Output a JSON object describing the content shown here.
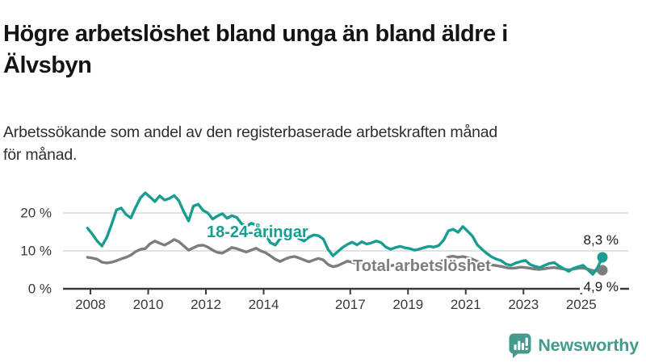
{
  "header": {
    "title": "Högre arbetslöshet bland unga än bland äldre i\nÄlvsbyn",
    "subtitle": "Arbetssökande som andel av den registerbaserade arbetskraften månad\nför månad."
  },
  "chart_data": {
    "type": "line",
    "unit": "%",
    "grid": true,
    "x_start_year": 2007.9,
    "x_step_years": 0.166667,
    "x_tick_years": [
      2008,
      2010,
      2012,
      2014,
      2017,
      2019,
      2021,
      2023,
      2025
    ],
    "x_tick_labels": [
      "2008",
      "2010",
      "2012",
      "2014",
      "2017",
      "2019",
      "2021",
      "2023",
      "2025"
    ],
    "y_ticks": [
      0,
      10,
      20
    ],
    "y_tick_labels": [
      "0 %",
      "10 %",
      "20 %"
    ],
    "ylim": [
      0,
      27
    ],
    "colors": {
      "youth_line": "#179e91",
      "total_line": "#7d7d7d",
      "axis": "#3a3a3a",
      "gridline": "#d9d9d9"
    },
    "series": [
      {
        "name": "Total arbetslöshet",
        "color": "#7d7d7d",
        "end_label": "4,9 %",
        "end_value": 4.9,
        "values": [
          8.3,
          8.1,
          7.8,
          7.0,
          6.8,
          7.0,
          7.4,
          7.9,
          8.3,
          8.9,
          9.8,
          10.4,
          10.6,
          11.9,
          12.6,
          12.0,
          11.5,
          12.2,
          13.0,
          12.4,
          11.3,
          10.2,
          10.8,
          11.4,
          11.5,
          11.0,
          10.2,
          9.6,
          9.4,
          10.1,
          10.9,
          10.6,
          10.1,
          9.7,
          10.2,
          10.7,
          10.0,
          9.5,
          8.7,
          7.8,
          7.2,
          7.8,
          8.3,
          8.5,
          8.1,
          7.6,
          7.1,
          7.6,
          8.0,
          7.6,
          6.4,
          5.8,
          6.1,
          6.7,
          7.3,
          7.0,
          6.6,
          6.3,
          6.5,
          6.8,
          7.0,
          6.8,
          6.4,
          6.1,
          6.3,
          6.5,
          6.4,
          6.3,
          6.1,
          6.2,
          6.4,
          6.6,
          6.7,
          6.9,
          7.6,
          8.4,
          8.6,
          8.3,
          8.5,
          8.2,
          7.8,
          7.2,
          6.9,
          6.6,
          6.3,
          6.1,
          5.9,
          5.6,
          5.4,
          5.5,
          5.7,
          5.6,
          5.4,
          5.2,
          5.1,
          5.3,
          5.5,
          5.6,
          5.4,
          5.2,
          5.0,
          5.2,
          5.4,
          5.5,
          5.2,
          4.8,
          4.7,
          4.9
        ]
      },
      {
        "name": "18-24-åringar",
        "color": "#179e91",
        "end_label": "8,3 %",
        "end_value": 8.3,
        "values": [
          16.0,
          14.4,
          12.6,
          11.3,
          13.6,
          17.0,
          20.8,
          21.3,
          19.6,
          18.7,
          21.5,
          24.0,
          25.3,
          24.2,
          23.0,
          24.5,
          23.4,
          23.8,
          24.6,
          23.2,
          20.3,
          17.9,
          21.8,
          22.3,
          20.7,
          20.0,
          18.4,
          19.2,
          19.8,
          18.6,
          19.3,
          18.8,
          17.2,
          16.4,
          17.3,
          16.8,
          15.4,
          14.3,
          12.2,
          11.5,
          13.2,
          14.1,
          14.4,
          14.0,
          13.2,
          12.6,
          13.6,
          14.2,
          14.0,
          13.1,
          10.4,
          8.7,
          9.8,
          10.9,
          11.7,
          12.3,
          11.6,
          12.4,
          11.8,
          12.1,
          12.6,
          12.2,
          11.0,
          10.4,
          10.9,
          11.2,
          10.8,
          10.6,
          10.2,
          10.5,
          10.9,
          11.2,
          11.0,
          11.4,
          12.8,
          15.3,
          15.7,
          14.9,
          16.4,
          15.2,
          13.9,
          11.6,
          10.4,
          9.3,
          8.4,
          7.8,
          7.4,
          6.5,
          6.2,
          6.8,
          7.2,
          7.5,
          6.4,
          5.9,
          5.6,
          6.2,
          6.7,
          6.9,
          6.0,
          5.3,
          4.6,
          5.4,
          5.8,
          6.2,
          5.0,
          3.8,
          5.6,
          8.3
        ]
      }
    ]
  },
  "branding": {
    "logo_text": "Newsworthy",
    "logo_icon": "bar-chart-speech-bubble-icon",
    "logo_color": "#459a8e"
  }
}
